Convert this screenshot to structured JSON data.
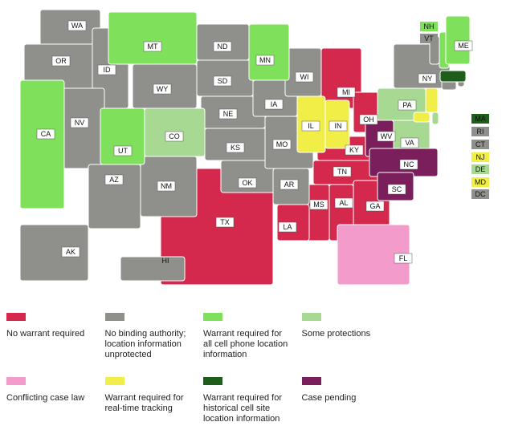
{
  "categories": [
    {
      "label": "No warrant required",
      "color": "#d4284c",
      "states": [
        "MI",
        "OH",
        "KY",
        "TN",
        "MS",
        "AL",
        "GA",
        "TX",
        "LA"
      ]
    },
    {
      "label": "No binding authority; location information unprotected",
      "color": "#8f8f8c",
      "states": [
        "WA",
        "OR",
        "ID",
        "NV",
        "AZ",
        "NM",
        "WY",
        "ND",
        "SD",
        "NE",
        "KS",
        "OK",
        "IA",
        "MO",
        "AR",
        "WI",
        "NY",
        "VT",
        "RI",
        "CT",
        "DC",
        "AK",
        "HI"
      ]
    },
    {
      "label": "Warrant required for all cell phone location information",
      "color": "#7fe05c",
      "states": [
        "CA",
        "MT",
        "UT",
        "MN",
        "NH",
        "ME"
      ]
    },
    {
      "label": "Some protections",
      "color": "#a7d992",
      "states": [
        "CO",
        "PA",
        "VA",
        "DE"
      ]
    },
    {
      "label": "Conflicting case law",
      "color": "#f39ccb",
      "states": [
        "FL"
      ]
    },
    {
      "label": "Warrant required for real-time tracking",
      "color": "#f2ee48",
      "states": [
        "IL",
        "IN",
        "NJ",
        "MD"
      ]
    },
    {
      "label": "Warrant required for historical cell site location information",
      "color": "#1e5e1a",
      "states": [
        "MA"
      ]
    },
    {
      "label": "Case pending",
      "color": "#7a1f5b",
      "states": [
        "WV",
        "NC",
        "SC"
      ]
    }
  ]
}
